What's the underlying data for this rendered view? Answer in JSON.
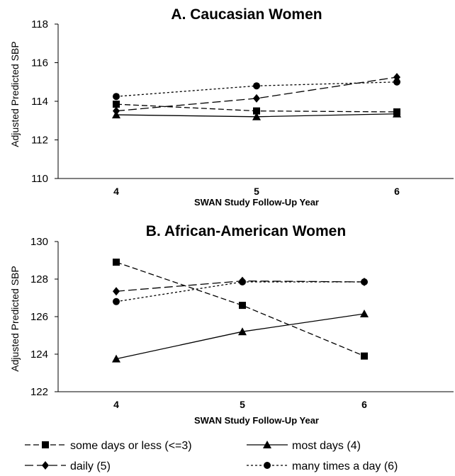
{
  "chart_data": [
    {
      "type": "line",
      "title": "A. Caucasian Women",
      "xlabel": "SWAN Study Follow-Up Year",
      "ylabel": "Adjusted Predicted SBP",
      "categories": [
        "4",
        "5",
        "6"
      ],
      "ylim": [
        110,
        118
      ],
      "yticks": [
        "110",
        "112",
        "114",
        "116",
        "118"
      ],
      "series": [
        {
          "name": "some days or less (<=3)",
          "values": [
            113.85,
            113.5,
            113.45
          ],
          "marker": "square",
          "dash": "dash"
        },
        {
          "name": "most days (4)",
          "values": [
            113.3,
            113.2,
            113.35
          ],
          "marker": "triangle",
          "dash": "solid"
        },
        {
          "name": "daily (5)",
          "values": [
            113.5,
            114.15,
            115.25
          ],
          "marker": "diamond",
          "dash": "longdash"
        },
        {
          "name": "many times a day (6)",
          "values": [
            114.25,
            114.8,
            115.0
          ],
          "marker": "circle",
          "dash": "dotted"
        }
      ]
    },
    {
      "type": "line",
      "title": "B. African-American Women",
      "xlabel": "SWAN Study Follow-Up Year",
      "ylabel": "Adjusted Predicted SBP",
      "categories": [
        "4",
        "5",
        "6"
      ],
      "ylim": [
        122,
        130
      ],
      "yticks": [
        "122",
        "124",
        "126",
        "128",
        "130"
      ],
      "series": [
        {
          "name": "some days or less (<=3)",
          "values": [
            128.9,
            126.6,
            123.9
          ],
          "marker": "square",
          "dash": "dash"
        },
        {
          "name": "most days (4)",
          "values": [
            123.75,
            125.2,
            126.15
          ],
          "marker": "triangle",
          "dash": "solid"
        },
        {
          "name": "daily (5)",
          "values": [
            127.35,
            127.9,
            127.85
          ],
          "marker": "diamond",
          "dash": "longdash"
        },
        {
          "name": "many times a day (6)",
          "values": [
            126.8,
            127.85,
            127.85
          ],
          "marker": "circle",
          "dash": "dotted"
        }
      ]
    }
  ],
  "legend": {
    "placement": "bottom",
    "items": [
      {
        "label": "some days or less (<=3)",
        "marker": "square",
        "dash": "dash"
      },
      {
        "label": "most days (4)",
        "marker": "triangle",
        "dash": "solid"
      },
      {
        "label": "daily (5)",
        "marker": "diamond",
        "dash": "longdash"
      },
      {
        "label": "many times a day (6)",
        "marker": "circle",
        "dash": "dotted"
      }
    ]
  },
  "colors": {
    "line": "#000000",
    "background": "#ffffff"
  }
}
